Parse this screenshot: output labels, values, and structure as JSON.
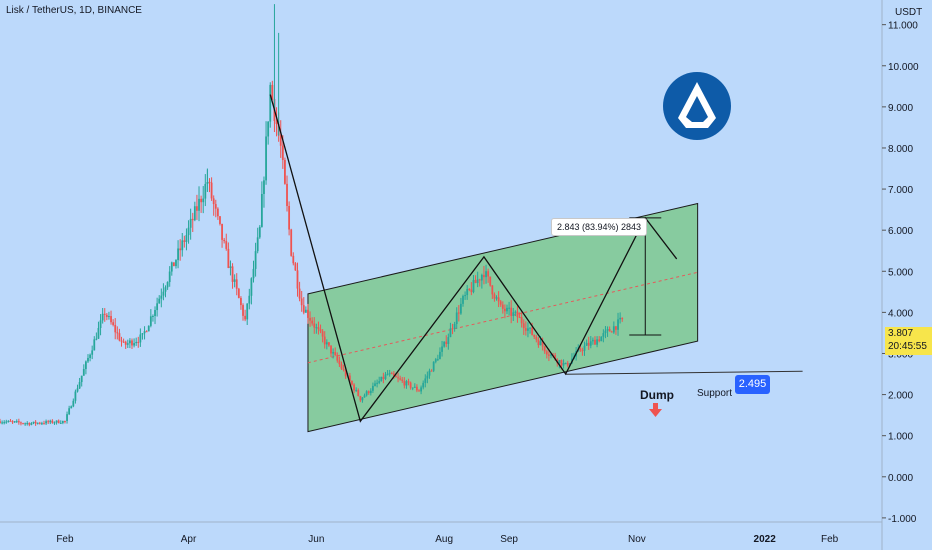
{
  "header": {
    "title": "Lisk / TetherUS, 1D, BINANCE",
    "unit": "USDT"
  },
  "price": {
    "current": "3.807",
    "countdown": "20:45:55"
  },
  "colors": {
    "background": "#bcd9fb",
    "up": "#26a69a",
    "down": "#ef5350",
    "channel": "#81c995",
    "price_tag": "#f7e54b",
    "support_tag": "#2962ff",
    "logo": "#0e5ba8"
  },
  "annotations": {
    "measure": "2.843 (83.94%) 2843",
    "support_value": "2.495",
    "support_label": "Support",
    "dump_label": "Dump"
  },
  "icons": {
    "logo": "lisk-logo-icon",
    "dump_arrow": "arrow-down-icon"
  },
  "chart_data": {
    "type": "candlestick",
    "symbol": "Lisk / TetherUS",
    "timeframe": "1D",
    "exchange": "BINANCE",
    "y_axis": {
      "ticks": [
        11.0,
        10.0,
        9.0,
        8.0,
        7.0,
        6.0,
        5.0,
        4.0,
        3.0,
        2.0,
        1.0,
        0.0,
        -1.0
      ],
      "labels": [
        "11.000",
        "10.000",
        "9.000",
        "8.000",
        "7.000",
        "6.000",
        "5.000",
        "4.000",
        "3.000",
        "2.000",
        "1.000",
        "0.000",
        "-1.000"
      ],
      "range": [
        -1.1,
        11.6
      ],
      "side": "right"
    },
    "x_axis": {
      "labels": [
        "Feb",
        "Apr",
        "Jun",
        "Aug",
        "Sep",
        "Nov",
        "2022",
        "Feb"
      ],
      "dates": [
        "2021-02-01",
        "2021-04-01",
        "2021-06-01",
        "2021-08-01",
        "2021-09-01",
        "2021-11-01",
        "2022-01-01",
        "2022-02-01"
      ],
      "range": [
        "2021-01-01",
        "2022-02-26"
      ]
    },
    "price_path": [
      {
        "date": "2021-01-01",
        "close": 1.35
      },
      {
        "date": "2021-01-15",
        "close": 1.3
      },
      {
        "date": "2021-02-01",
        "close": 1.35
      },
      {
        "date": "2021-02-10",
        "close": 2.6
      },
      {
        "date": "2021-02-20",
        "close": 4.0
      },
      {
        "date": "2021-03-01",
        "close": 3.2
      },
      {
        "date": "2021-03-10",
        "close": 3.4
      },
      {
        "date": "2021-03-20",
        "close": 4.6
      },
      {
        "date": "2021-04-01",
        "close": 6.0
      },
      {
        "date": "2021-04-10",
        "close": 7.2
      },
      {
        "date": "2021-04-20",
        "close": 5.2
      },
      {
        "date": "2021-04-28",
        "close": 3.8
      },
      {
        "date": "2021-05-05",
        "close": 6.0
      },
      {
        "date": "2021-05-10",
        "close": 9.5
      },
      {
        "date": "2021-05-15",
        "close": 8.0
      },
      {
        "date": "2021-05-20",
        "close": 5.5
      },
      {
        "date": "2021-05-25",
        "close": 4.2
      },
      {
        "date": "2021-06-01",
        "close": 3.6
      },
      {
        "date": "2021-06-10",
        "close": 2.9
      },
      {
        "date": "2021-06-22",
        "close": 1.9
      },
      {
        "date": "2021-07-05",
        "close": 2.5
      },
      {
        "date": "2021-07-20",
        "close": 2.1
      },
      {
        "date": "2021-08-01",
        "close": 3.2
      },
      {
        "date": "2021-08-10",
        "close": 4.3
      },
      {
        "date": "2021-08-20",
        "close": 5.0
      },
      {
        "date": "2021-08-28",
        "close": 4.1
      },
      {
        "date": "2021-09-05",
        "close": 3.9
      },
      {
        "date": "2021-09-20",
        "close": 3.0
      },
      {
        "date": "2021-09-28",
        "close": 2.7
      },
      {
        "date": "2021-10-05",
        "close": 3.1
      },
      {
        "date": "2021-10-15",
        "close": 3.4
      },
      {
        "date": "2021-10-25",
        "close": 3.807
      }
    ],
    "wicks": [
      {
        "date": "2021-05-12",
        "high": 11.5
      },
      {
        "date": "2021-05-14",
        "high": 10.8
      },
      {
        "date": "2021-04-10",
        "high": 7.5
      }
    ],
    "channel": {
      "lower": [
        {
          "date": "2021-05-28",
          "price": 1.1
        },
        {
          "date": "2021-11-30",
          "price": 3.3
        }
      ],
      "upper": [
        {
          "date": "2021-05-28",
          "price": 4.45
        },
        {
          "date": "2021-11-30",
          "price": 6.65
        }
      ]
    },
    "zigzag": [
      {
        "date": "2021-05-10",
        "price": 9.3
      },
      {
        "date": "2021-06-22",
        "price": 1.35
      },
      {
        "date": "2021-08-20",
        "price": 5.35
      },
      {
        "date": "2021-09-28",
        "price": 2.5
      },
      {
        "date": "2021-11-05",
        "price": 6.3
      },
      {
        "date": "2021-11-20",
        "price": 5.3
      }
    ],
    "measure": {
      "date": "2021-11-05",
      "from": 3.45,
      "to": 6.3
    },
    "support": {
      "price": 2.495,
      "from": "2021-09-28",
      "to": "2021-12-31"
    }
  }
}
